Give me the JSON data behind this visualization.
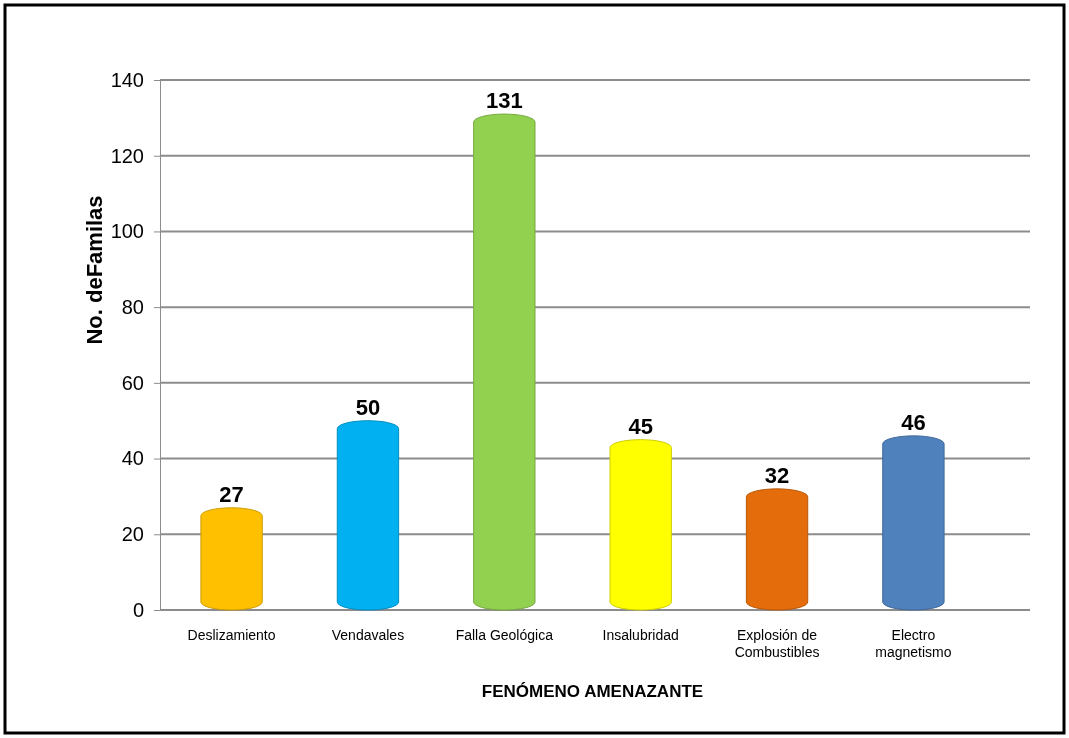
{
  "chart_data": {
    "type": "bar",
    "xlabel": "FENÓMENO AMENAZANTE",
    "ylabel": "No. deFamilas",
    "categories": [
      "Deslizamiento",
      "Vendavales",
      "Falla Geológica",
      "Insalubridad",
      "Explosión de Combustibles",
      "Electro magnetismo"
    ],
    "values": [
      27,
      50,
      131,
      45,
      32,
      46
    ],
    "colors": [
      "#ffc000",
      "#00b0f0",
      "#92d050",
      "#ffff00",
      "#e46c0a",
      "#4f81bd"
    ],
    "ylim": [
      0,
      140
    ],
    "yticks": [
      0,
      20,
      40,
      60,
      80,
      100,
      120,
      140
    ],
    "grid": "y",
    "data_labels": true
  }
}
